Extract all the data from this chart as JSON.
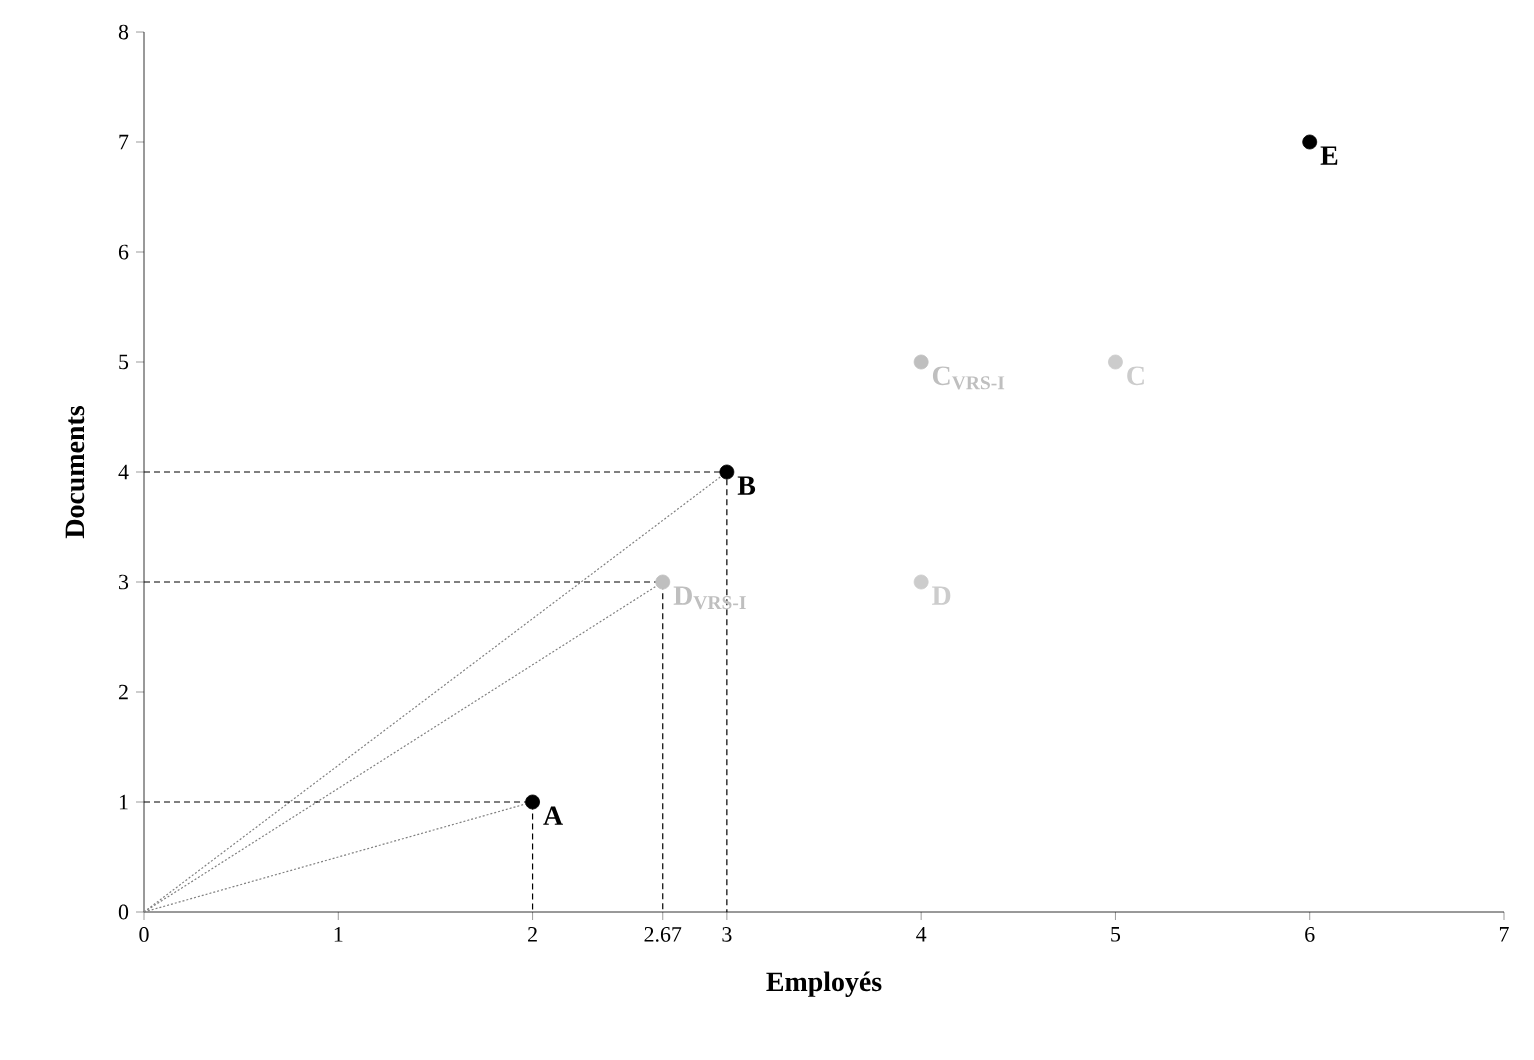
{
  "chart_data": {
    "type": "scatter",
    "xlabel": "Employés",
    "ylabel": "Documents",
    "xlim": [
      0,
      7
    ],
    "ylim": [
      0,
      8
    ],
    "xticks": [
      0,
      1,
      2,
      2.67,
      3,
      4,
      5,
      6,
      7
    ],
    "yticks": [
      0,
      1,
      2,
      3,
      4,
      5,
      6,
      7,
      8
    ],
    "grid": false,
    "legend": false,
    "marker": "circle",
    "series": [
      {
        "type": "line",
        "color": "#808080",
        "line_style": "dotted",
        "marker": "none",
        "x": [
          0,
          2
        ],
        "values": [
          0,
          1
        ]
      },
      {
        "type": "line",
        "color": "#808080",
        "line_style": "dotted",
        "marker": "none",
        "x": [
          0,
          3
        ],
        "values": [
          0,
          4
        ]
      },
      {
        "type": "line",
        "color": "#808080",
        "line_style": "dotted",
        "marker": "none",
        "x": [
          0,
          2.67
        ],
        "values": [
          0,
          3
        ]
      },
      {
        "type": "line",
        "color": "#000000",
        "line_style": "dashed",
        "marker": "none",
        "x": [
          0,
          2,
          2
        ],
        "values": [
          1,
          1,
          0
        ]
      },
      {
        "type": "line",
        "color": "#000000",
        "line_style": "dashed",
        "marker": "none",
        "x": [
          0,
          3,
          3
        ],
        "values": [
          4,
          4,
          0
        ]
      },
      {
        "type": "line",
        "color": "#000000",
        "line_style": "dashed",
        "marker": "none",
        "x": [
          0,
          2.67,
          2.67
        ],
        "values": [
          3,
          3,
          0
        ]
      },
      {
        "name": "A",
        "color": "#000000",
        "x": [
          2
        ],
        "values": [
          1
        ]
      },
      {
        "name": "B",
        "color": "#000000",
        "x": [
          3
        ],
        "values": [
          4
        ]
      },
      {
        "name": "E",
        "color": "#000000",
        "x": [
          6
        ],
        "values": [
          7
        ]
      },
      {
        "name": "C",
        "color": "#cccccc",
        "x": [
          5
        ],
        "values": [
          5
        ]
      },
      {
        "name": "D",
        "color": "#cccccc",
        "x": [
          4
        ],
        "values": [
          3
        ]
      },
      {
        "name": "C$_{VRS-I}$",
        "color": "#bfbfbf",
        "x": [
          4
        ],
        "values": [
          5
        ]
      },
      {
        "name": "D$_{VRS-I}$",
        "color": "#bfbfbf",
        "x": [
          2.67
        ],
        "values": [
          3
        ]
      }
    ]
  }
}
